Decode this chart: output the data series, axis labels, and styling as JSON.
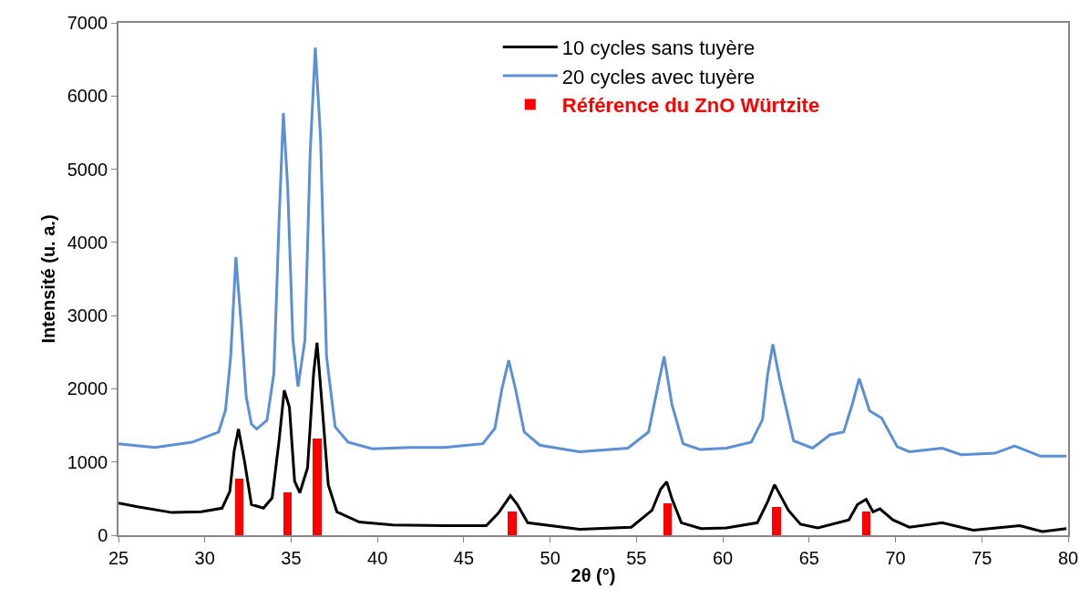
{
  "chart_data": {
    "type": "line",
    "xlabel": "2θ (°)",
    "ylabel": "Intensité (u. a.)",
    "xlim": [
      25,
      80
    ],
    "xticks": [
      25,
      30,
      35,
      40,
      45,
      50,
      55,
      60,
      65,
      70,
      75,
      80
    ],
    "ylim": [
      0,
      7000
    ],
    "yticks": [
      0,
      1000,
      2000,
      3000,
      4000,
      5000,
      6000,
      7000
    ],
    "legend": "top",
    "marker": "none",
    "line_style": "solid",
    "series": [
      {
        "name": "10 cycles sans tuyère",
        "color": "#000000",
        "x": [
          25,
          26.1,
          28.1,
          29.8,
          31.0,
          31.45,
          31.7,
          31.95,
          32.3,
          32.7,
          33.4,
          33.9,
          34.3,
          34.6,
          34.9,
          35.2,
          35.5,
          35.95,
          36.3,
          36.5,
          36.8,
          37.15,
          37.65,
          38.95,
          40.9,
          43.9,
          46.3,
          47.0,
          47.7,
          48.1,
          48.7,
          51.7,
          54.7,
          55.9,
          56.4,
          56.75,
          57.05,
          57.6,
          58.75,
          60.2,
          62.0,
          62.6,
          63.0,
          63.8,
          64.5,
          65.5,
          67.3,
          67.8,
          68.3,
          68.7,
          69.1,
          69.85,
          70.8,
          72.7,
          74.5,
          77.2,
          78.5,
          79.9
        ],
        "values": [
          440,
          390,
          310,
          320,
          370,
          600,
          1150,
          1450,
          1010,
          420,
          370,
          510,
          1290,
          1980,
          1750,
          740,
          580,
          920,
          2210,
          2630,
          1750,
          690,
          320,
          180,
          140,
          130,
          130,
          300,
          540,
          420,
          170,
          80,
          110,
          340,
          630,
          730,
          500,
          170,
          90,
          100,
          170,
          460,
          690,
          340,
          150,
          100,
          210,
          420,
          490,
          320,
          360,
          210,
          110,
          170,
          70,
          130,
          50,
          90
        ]
      },
      {
        "name": "20 cycles avec tuyère",
        "color": "#5b8fd6",
        "x": [
          25,
          27.1,
          29.25,
          30.8,
          31.2,
          31.5,
          31.8,
          32.1,
          32.4,
          32.7,
          33.0,
          33.6,
          34.0,
          34.3,
          34.55,
          34.8,
          35.1,
          35.4,
          35.8,
          36.1,
          36.4,
          36.7,
          37.05,
          37.55,
          38.3,
          39.7,
          41.9,
          43.9,
          46.1,
          46.8,
          47.2,
          47.6,
          48.0,
          48.5,
          49.4,
          51.7,
          54.5,
          55.7,
          56.2,
          56.6,
          57.05,
          57.7,
          58.7,
          60.2,
          61.65,
          62.3,
          62.6,
          62.9,
          63.3,
          64.1,
          65.2,
          66.2,
          67.0,
          67.5,
          67.9,
          68.5,
          69.2,
          70.1,
          70.8,
          72.7,
          73.8,
          75.75,
          76.9,
          78.4,
          79.9
        ],
        "values": [
          1250,
          1200,
          1270,
          1410,
          1710,
          2440,
          3800,
          2900,
          1890,
          1520,
          1450,
          1570,
          2210,
          4290,
          5770,
          4750,
          2670,
          2030,
          2670,
          5210,
          6660,
          5440,
          2440,
          1480,
          1270,
          1180,
          1200,
          1200,
          1250,
          1460,
          1990,
          2390,
          1990,
          1410,
          1230,
          1140,
          1190,
          1410,
          1990,
          2440,
          1790,
          1250,
          1170,
          1190,
          1270,
          1580,
          2200,
          2610,
          2120,
          1290,
          1190,
          1370,
          1410,
          1790,
          2140,
          1700,
          1600,
          1210,
          1140,
          1190,
          1100,
          1120,
          1220,
          1080,
          1080
        ]
      },
      {
        "name": "Référence du ZnO Würtzite",
        "type": "bar",
        "color": "#ff0000",
        "x": [
          32.0,
          34.8,
          36.5,
          47.8,
          56.8,
          63.1,
          68.3
        ],
        "values": [
          770,
          590,
          1320,
          320,
          440,
          380,
          320
        ]
      }
    ]
  }
}
